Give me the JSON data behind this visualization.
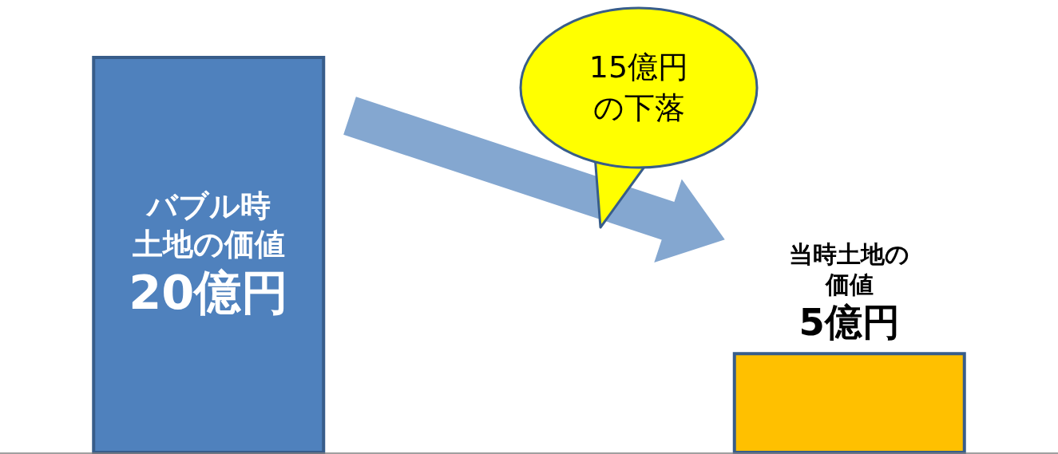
{
  "chart_data": {
    "type": "bar",
    "categories": [
      "バブル時土地の価値",
      "当時土地の価値"
    ],
    "values": [
      20,
      5
    ],
    "colors": [
      "#4f81bd",
      "#ffc000"
    ],
    "value_labels": [
      "20億円",
      "5億円"
    ],
    "annotations": [
      "15億円の下落"
    ]
  }
}
